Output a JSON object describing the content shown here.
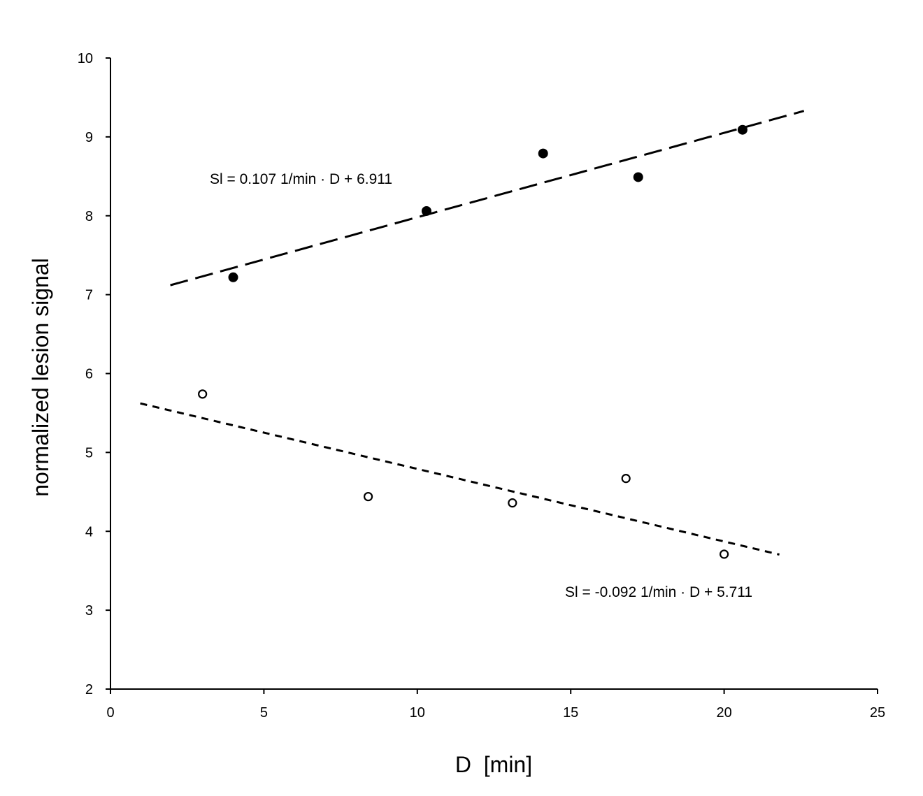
{
  "chart_data": {
    "type": "scatter",
    "title": "",
    "xlabel": "D  [min]",
    "ylabel": "normalized lesion signal",
    "xlim": [
      0,
      25
    ],
    "ylim": [
      2,
      10
    ],
    "xticks": [
      0,
      5,
      10,
      15,
      20,
      25
    ],
    "yticks": [
      2,
      3,
      4,
      5,
      6,
      7,
      8,
      9,
      10
    ],
    "grid": false,
    "series": [
      {
        "marker": "filled-circle",
        "color": "#000000",
        "x": [
          4.0,
          10.3,
          14.1,
          17.2,
          20.6
        ],
        "y": [
          7.22,
          8.06,
          8.79,
          8.49,
          9.09
        ],
        "trendline": {
          "slope": 0.107,
          "intercept": 6.911,
          "x_range": [
            1.95,
            22.6
          ],
          "style": "long-dash"
        },
        "equation": "Sl = 0.107 1/min · D + 6.911"
      },
      {
        "marker": "open-circle",
        "color": "#000000",
        "x": [
          3.0,
          8.4,
          13.1,
          16.8,
          20.0
        ],
        "y": [
          5.74,
          4.44,
          4.36,
          4.67,
          3.71
        ],
        "trendline": {
          "slope": -0.092,
          "intercept": 5.711,
          "x_range": [
            0.97,
            21.8
          ],
          "style": "short-dash"
        },
        "equation": "Sl = -0.092 1/min · D + 5.711"
      }
    ]
  }
}
